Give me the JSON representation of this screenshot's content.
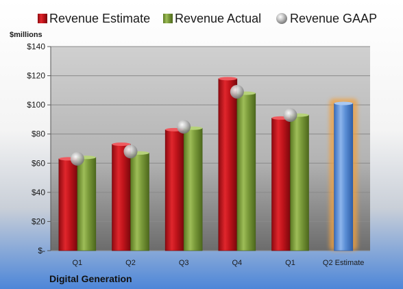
{
  "company": "Digital Generation",
  "colors": {
    "estimate": "#c0141b",
    "actual": "#7a9a3a",
    "gaap": "#b8b8b8",
    "forecast": "#5b8fd6",
    "forecast_glow": "#f0a040"
  },
  "chart_data": {
    "type": "bar",
    "ylabel": "$millions",
    "ylim": [
      0,
      140
    ],
    "y_ticks": [
      0,
      20,
      40,
      60,
      80,
      100,
      120,
      140
    ],
    "y_tick_labels": [
      "$-",
      "$20",
      "$40",
      "$60",
      "$80",
      "$100",
      "$120",
      "$140"
    ],
    "categories": [
      "Q1",
      "Q2",
      "Q3",
      "Q4",
      "Q1",
      "Q2 Estimate"
    ],
    "legend_position": "top",
    "grid": true,
    "series": [
      {
        "name": "Revenue Estimate",
        "values": [
          63,
          73,
          83,
          118,
          91,
          101
        ]
      },
      {
        "name": "Revenue Actual",
        "values": [
          64,
          67,
          84,
          108,
          93,
          null
        ]
      },
      {
        "name": "Revenue GAAP",
        "values": [
          63,
          68,
          85,
          109,
          93,
          null
        ]
      }
    ]
  }
}
